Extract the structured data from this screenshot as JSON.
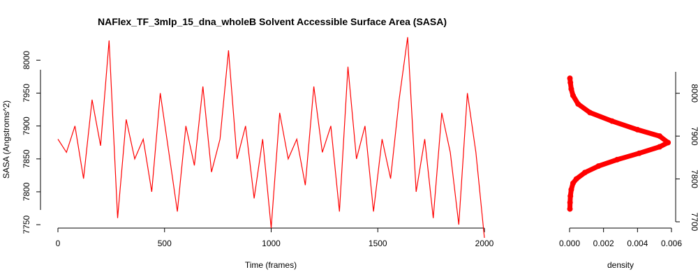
{
  "chart_data": [
    {
      "type": "line",
      "title": "NAFlex_TF_3mlp_15_dna_wholeB Solvent Accessible Surface Area (SASA)",
      "xlabel": "Time (frames)",
      "ylabel": "SASA (Angstroms^2)",
      "xlim": [
        0,
        2000
      ],
      "ylim": [
        7730,
        8030
      ],
      "x_ticks": [
        "0",
        "500",
        "1000",
        "1500",
        "2000"
      ],
      "y_ticks": [
        "7750",
        "7800",
        "7850",
        "7900",
        "7950",
        "8000"
      ],
      "series_color": "#ff0000",
      "series": [
        {
          "x": [
            0,
            40,
            80,
            120,
            160,
            200,
            240,
            280,
            320,
            360,
            400,
            440,
            480,
            520,
            560,
            600,
            640,
            680,
            720,
            760,
            800,
            840,
            880,
            920,
            960,
            1000,
            1040,
            1080,
            1120,
            1160,
            1200,
            1240,
            1280,
            1320,
            1360,
            1400,
            1440,
            1480,
            1520,
            1560,
            1600,
            1640,
            1680,
            1720,
            1760,
            1800,
            1840,
            1880,
            1920,
            1960,
            2000
          ],
          "y": [
            7880,
            7860,
            7900,
            7820,
            7940,
            7870,
            8030,
            7760,
            7910,
            7850,
            7880,
            7800,
            7950,
            7860,
            7770,
            7900,
            7840,
            7960,
            7830,
            7880,
            8015,
            7850,
            7900,
            7790,
            7880,
            7745,
            7920,
            7850,
            7880,
            7810,
            7960,
            7860,
            7900,
            7770,
            7990,
            7850,
            7900,
            7770,
            7880,
            7820,
            7940,
            8035,
            7800,
            7880,
            7760,
            7920,
            7860,
            7750,
            7950,
            7860,
            7730
          ]
        }
      ]
    },
    {
      "type": "line",
      "title": "",
      "xlabel": "density",
      "ylabel": "",
      "xlim": [
        0,
        0.006
      ],
      "ylim": [
        7700,
        8050
      ],
      "x_ticks": [
        "0.000",
        "0.002",
        "0.004",
        "0.006"
      ],
      "y_ticks": [
        "7700",
        "7800",
        "7900",
        "8000"
      ],
      "series_color": "#ff0000",
      "series": [
        {
          "x": [
            2e-05,
            3e-05,
            5e-05,
            0.0001,
            0.0002,
            0.0004,
            0.0009,
            0.0017,
            0.0028,
            0.0041,
            0.0053,
            0.0058,
            0.0053,
            0.004,
            0.0025,
            0.0012,
            0.0005,
            0.0002,
            0.0001,
            5e-05,
            2e-05
          ],
          "y": [
            7730,
            7745,
            7760,
            7775,
            7790,
            7800,
            7815,
            7830,
            7845,
            7860,
            7875,
            7885,
            7900,
            7915,
            7935,
            7955,
            7975,
            7995,
            8010,
            8025,
            8035
          ]
        }
      ]
    }
  ]
}
